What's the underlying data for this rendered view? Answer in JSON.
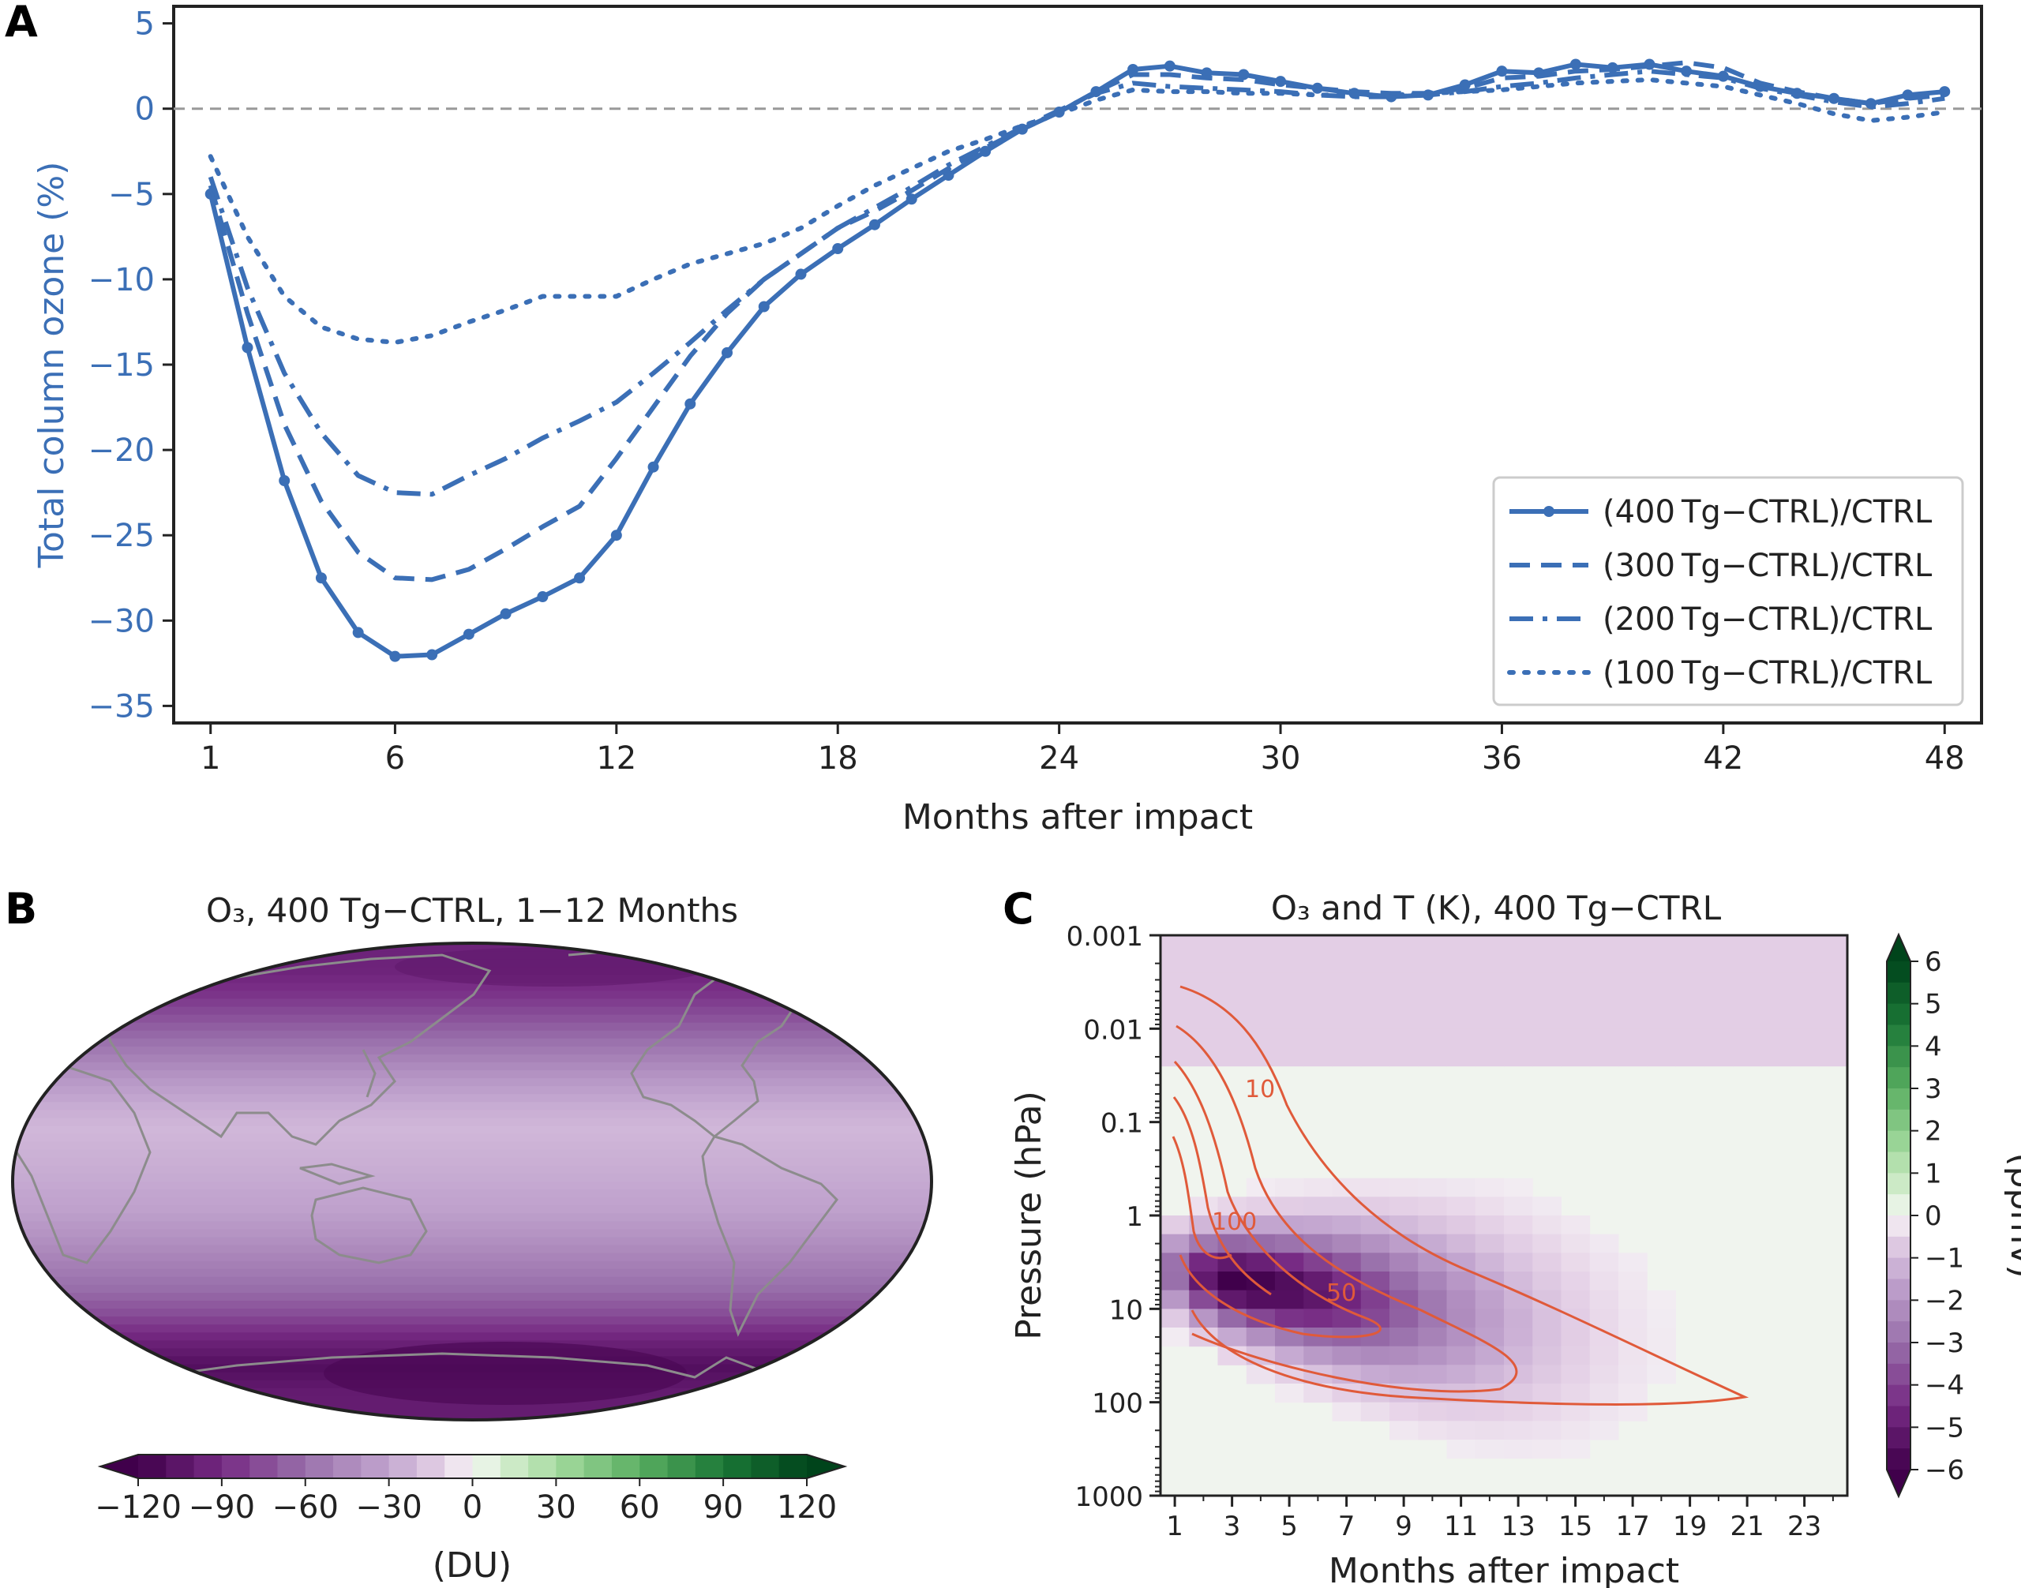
{
  "panels": {
    "a": {
      "letter": "A"
    },
    "b": {
      "letter": "B",
      "title": "O₃, 400 Tg−CTRL, 1−12 Months"
    },
    "c": {
      "letter": "C",
      "title": "O₃ and T (K), 400 Tg−CTRL"
    }
  },
  "chart_data": [
    {
      "id": "A",
      "type": "line",
      "title": "",
      "xlabel": "Months after impact",
      "ylabel": "Total column ozone (%)",
      "xlim": [
        0,
        49
      ],
      "ylim": [
        -36,
        6
      ],
      "xticks": [
        1,
        6,
        12,
        18,
        24,
        30,
        36,
        42,
        48
      ],
      "yticks": [
        5,
        0,
        -5,
        -10,
        -15,
        -20,
        -25,
        -30,
        -35
      ],
      "ytick_labels": [
        "5",
        "0",
        "−5",
        "−10",
        "−15",
        "−20",
        "−25",
        "−30",
        "−35"
      ],
      "reference_line_y": 0,
      "legend_position": "lower-right",
      "color": "#3b6fb6",
      "series": [
        {
          "name": "(400 Tg−CTRL)/CTRL",
          "style": "solid-markers",
          "x": [
            1,
            2,
            3,
            4,
            5,
            6,
            7,
            8,
            9,
            10,
            11,
            12,
            13,
            14,
            15,
            16,
            17,
            18,
            19,
            20,
            21,
            22,
            23,
            24,
            25,
            26,
            27,
            28,
            29,
            30,
            31,
            32,
            33,
            34,
            35,
            36,
            37,
            38,
            39,
            40,
            41,
            42,
            43,
            44,
            45,
            46,
            47,
            48
          ],
          "y": [
            -5,
            -14,
            -21.8,
            -27.5,
            -30.7,
            -32.1,
            -32,
            -30.8,
            -29.6,
            -28.6,
            -27.5,
            -25,
            -21,
            -17.3,
            -14.3,
            -11.6,
            -9.7,
            -8.2,
            -6.8,
            -5.3,
            -3.9,
            -2.5,
            -1.2,
            -0.2,
            1,
            2.3,
            2.5,
            2.1,
            2,
            1.6,
            1.2,
            0.9,
            0.7,
            0.8,
            1.4,
            2.2,
            2.1,
            2.6,
            2.4,
            2.6,
            2.2,
            1.9,
            1.3,
            0.9,
            0.6,
            0.3,
            0.8,
            1
          ]
        },
        {
          "name": "(300 Tg−CTRL)/CTRL",
          "style": "dashed",
          "x": [
            1,
            2,
            3,
            4,
            5,
            6,
            7,
            8,
            9,
            10,
            11,
            12,
            13,
            14,
            15,
            16,
            17,
            18,
            19,
            20,
            21,
            22,
            23,
            24,
            25,
            26,
            27,
            28,
            29,
            30,
            31,
            32,
            33,
            34,
            35,
            36,
            37,
            38,
            39,
            40,
            41,
            42,
            43,
            44,
            45,
            46,
            47,
            48
          ],
          "y": [
            -4.5,
            -12,
            -18.5,
            -23,
            -26,
            -27.5,
            -27.6,
            -27,
            -25.8,
            -24.5,
            -23.3,
            -20.5,
            -17.5,
            -14.5,
            -12,
            -10,
            -8.5,
            -7,
            -6,
            -4.8,
            -3.5,
            -2.3,
            -1.2,
            -0.2,
            1,
            2,
            2,
            1.8,
            1.7,
            1.4,
            1.2,
            1,
            0.9,
            0.9,
            1.2,
            1.8,
            1.9,
            2.2,
            2.3,
            2.5,
            2.7,
            2.4,
            1.5,
            1,
            0.6,
            0.3,
            0.6,
            0.8
          ]
        },
        {
          "name": "(200 Tg−CTRL)/CTRL",
          "style": "dashdot",
          "x": [
            1,
            2,
            3,
            4,
            5,
            6,
            7,
            8,
            9,
            10,
            11,
            12,
            13,
            14,
            15,
            16,
            17,
            18,
            19,
            20,
            21,
            22,
            23,
            24,
            25,
            26,
            27,
            28,
            29,
            30,
            31,
            32,
            33,
            34,
            35,
            36,
            37,
            38,
            39,
            40,
            41,
            42,
            43,
            44,
            45,
            46,
            47,
            48
          ],
          "y": [
            -4,
            -10.5,
            -15.5,
            -19,
            -21.5,
            -22.5,
            -22.6,
            -21.5,
            -20.5,
            -19.3,
            -18.3,
            -17.2,
            -15.5,
            -13.7,
            -11.8,
            -10,
            -8.5,
            -7,
            -5.8,
            -4.6,
            -3.3,
            -2.2,
            -1.1,
            -0.1,
            0.9,
            1.5,
            1.3,
            1.2,
            1.1,
            1,
            0.8,
            0.7,
            0.7,
            0.8,
            1,
            1.3,
            1.5,
            1.8,
            2,
            2.2,
            2,
            1.8,
            1.2,
            0.8,
            0.4,
            0.1,
            0.3,
            0.6
          ]
        },
        {
          "name": "(100 Tg−CTRL)/CTRL",
          "style": "dotted",
          "x": [
            1,
            2,
            3,
            4,
            5,
            6,
            7,
            8,
            9,
            10,
            11,
            12,
            13,
            14,
            15,
            16,
            17,
            18,
            19,
            20,
            21,
            22,
            23,
            24,
            25,
            26,
            27,
            28,
            29,
            30,
            31,
            32,
            33,
            34,
            35,
            36,
            37,
            38,
            39,
            40,
            41,
            42,
            43,
            44,
            45,
            46,
            47,
            48
          ],
          "y": [
            -2.8,
            -7.5,
            -11,
            -12.8,
            -13.5,
            -13.7,
            -13.3,
            -12.5,
            -11.8,
            -11,
            -11,
            -11,
            -10,
            -9.1,
            -8.5,
            -7.9,
            -7,
            -5.7,
            -4.5,
            -3.5,
            -2.5,
            -1.8,
            -1,
            -0.3,
            0.5,
            1.1,
            1,
            1,
            0.9,
            0.9,
            0.8,
            0.8,
            0.8,
            0.9,
            1,
            1.1,
            1.3,
            1.5,
            1.6,
            1.7,
            1.5,
            1.3,
            0.8,
            0.3,
            -0.3,
            -0.7,
            -0.5,
            -0.2
          ]
        }
      ]
    },
    {
      "id": "B",
      "type": "heatmap",
      "title": "O₃, 400 Tg−CTRL, 1−12 Months",
      "projection": "Robinson",
      "colorbar_label": "(DU)",
      "colorbar_ticks": [
        -120,
        -90,
        -60,
        -30,
        0,
        30,
        60,
        90,
        120
      ],
      "colorbar_tick_labels": [
        "−120",
        "−90",
        "−60",
        "−30",
        "0",
        "30",
        "60",
        "90",
        "120"
      ],
      "colorbar_orientation": "horizontal",
      "colorbar_extend": "both",
      "colormap": "PRGn",
      "zonal_mean_anomaly": {
        "latitude": [
          80,
          70,
          60,
          50,
          40,
          30,
          20,
          10,
          0,
          -10,
          -20,
          -30,
          -40,
          -50,
          -60,
          -70,
          -80
        ],
        "value": [
          -95,
          -85,
          -70,
          -55,
          -40,
          -28,
          -22,
          -25,
          -28,
          -32,
          -40,
          -50,
          -60,
          -75,
          -95,
          -110,
          -100
        ]
      }
    },
    {
      "id": "C",
      "type": "heatmap",
      "title": "O₃ and T (K), 400 Tg−CTRL",
      "xlabel": "Months after impact",
      "ylabel": "Pressure (hPa)",
      "xticks": [
        1,
        3,
        5,
        7,
        9,
        11,
        13,
        15,
        17,
        19,
        21,
        23
      ],
      "yscale": "log",
      "yticks": [
        0.001,
        0.01,
        0.1,
        1,
        10,
        100,
        1000
      ],
      "ytick_labels": [
        "0.001",
        "0.01",
        "0.1",
        "1",
        "10",
        "100",
        "1000"
      ],
      "colorbar_label": "(ppmv)",
      "colorbar_ticks": [
        6,
        5,
        4,
        3,
        2,
        1,
        0,
        -1,
        -2,
        -3,
        -4,
        -5,
        -6
      ],
      "colorbar_tick_labels": [
        "6",
        "5",
        "4",
        "3",
        "2",
        "1",
        "0",
        "−1",
        "−2",
        "−3",
        "−4",
        "−5",
        "−6"
      ],
      "colorbar_orientation": "vertical",
      "colorbar_extend": "both",
      "colormap": "PRGn",
      "contour_labels": [
        "10",
        "100",
        "50"
      ],
      "o3_anomaly_peak": {
        "month": 3,
        "pressure_hPa": 5,
        "value": -6
      }
    }
  ]
}
